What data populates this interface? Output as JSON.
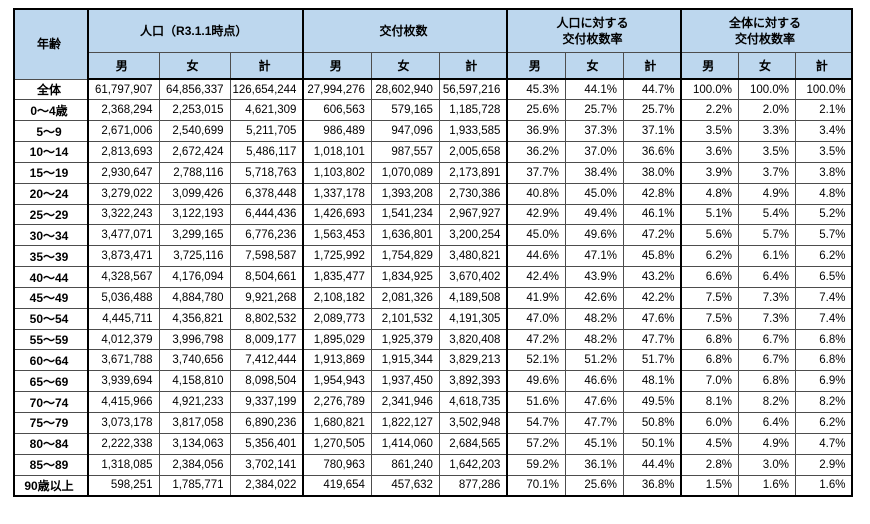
{
  "table": {
    "header": {
      "age": "年齢",
      "groups": [
        {
          "line1": "人口（R3.1.1時点）",
          "line2": ""
        },
        {
          "line1": "交付枚数",
          "line2": ""
        },
        {
          "line1": "人口に対する",
          "line2": "交付枚数率"
        },
        {
          "line1": "全体に対する",
          "line2": "交付枚数率"
        }
      ],
      "sub": [
        "男",
        "女",
        "計"
      ]
    },
    "rows": [
      [
        "全体",
        "61,797,907",
        "64,856,337",
        "126,654,244",
        "27,994,276",
        "28,602,940",
        "56,597,216",
        "45.3%",
        "44.1%",
        "44.7%",
        "100.0%",
        "100.0%",
        "100.0%"
      ],
      [
        "0～4歳",
        "2,368,294",
        "2,253,015",
        "4,621,309",
        "606,563",
        "579,165",
        "1,185,728",
        "25.6%",
        "25.7%",
        "25.7%",
        "2.2%",
        "2.0%",
        "2.1%"
      ],
      [
        "5～9",
        "2,671,006",
        "2,540,699",
        "5,211,705",
        "986,489",
        "947,096",
        "1,933,585",
        "36.9%",
        "37.3%",
        "37.1%",
        "3.5%",
        "3.3%",
        "3.4%"
      ],
      [
        "10～14",
        "2,813,693",
        "2,672,424",
        "5,486,117",
        "1,018,101",
        "987,557",
        "2,005,658",
        "36.2%",
        "37.0%",
        "36.6%",
        "3.6%",
        "3.5%",
        "3.5%"
      ],
      [
        "15～19",
        "2,930,647",
        "2,788,116",
        "5,718,763",
        "1,103,802",
        "1,070,089",
        "2,173,891",
        "37.7%",
        "38.4%",
        "38.0%",
        "3.9%",
        "3.7%",
        "3.8%"
      ],
      [
        "20～24",
        "3,279,022",
        "3,099,426",
        "6,378,448",
        "1,337,178",
        "1,393,208",
        "2,730,386",
        "40.8%",
        "45.0%",
        "42.8%",
        "4.8%",
        "4.9%",
        "4.8%"
      ],
      [
        "25～29",
        "3,322,243",
        "3,122,193",
        "6,444,436",
        "1,426,693",
        "1,541,234",
        "2,967,927",
        "42.9%",
        "49.4%",
        "46.1%",
        "5.1%",
        "5.4%",
        "5.2%"
      ],
      [
        "30～34",
        "3,477,071",
        "3,299,165",
        "6,776,236",
        "1,563,453",
        "1,636,801",
        "3,200,254",
        "45.0%",
        "49.6%",
        "47.2%",
        "5.6%",
        "5.7%",
        "5.7%"
      ],
      [
        "35～39",
        "3,873,471",
        "3,725,116",
        "7,598,587",
        "1,725,992",
        "1,754,829",
        "3,480,821",
        "44.6%",
        "47.1%",
        "45.8%",
        "6.2%",
        "6.1%",
        "6.2%"
      ],
      [
        "40～44",
        "4,328,567",
        "4,176,094",
        "8,504,661",
        "1,835,477",
        "1,834,925",
        "3,670,402",
        "42.4%",
        "43.9%",
        "43.2%",
        "6.6%",
        "6.4%",
        "6.5%"
      ],
      [
        "45～49",
        "5,036,488",
        "4,884,780",
        "9,921,268",
        "2,108,182",
        "2,081,326",
        "4,189,508",
        "41.9%",
        "42.6%",
        "42.2%",
        "7.5%",
        "7.3%",
        "7.4%"
      ],
      [
        "50～54",
        "4,445,711",
        "4,356,821",
        "8,802,532",
        "2,089,773",
        "2,101,532",
        "4,191,305",
        "47.0%",
        "48.2%",
        "47.6%",
        "7.5%",
        "7.3%",
        "7.4%"
      ],
      [
        "55～59",
        "4,012,379",
        "3,996,798",
        "8,009,177",
        "1,895,029",
        "1,925,379",
        "3,820,408",
        "47.2%",
        "48.2%",
        "47.7%",
        "6.8%",
        "6.7%",
        "6.8%"
      ],
      [
        "60～64",
        "3,671,788",
        "3,740,656",
        "7,412,444",
        "1,913,869",
        "1,915,344",
        "3,829,213",
        "52.1%",
        "51.2%",
        "51.7%",
        "6.8%",
        "6.7%",
        "6.8%"
      ],
      [
        "65～69",
        "3,939,694",
        "4,158,810",
        "8,098,504",
        "1,954,943",
        "1,937,450",
        "3,892,393",
        "49.6%",
        "46.6%",
        "48.1%",
        "7.0%",
        "6.8%",
        "6.9%"
      ],
      [
        "70～74",
        "4,415,966",
        "4,921,233",
        "9,337,199",
        "2,276,789",
        "2,341,946",
        "4,618,735",
        "51.6%",
        "47.6%",
        "49.5%",
        "8.1%",
        "8.2%",
        "8.2%"
      ],
      [
        "75～79",
        "3,073,178",
        "3,817,058",
        "6,890,236",
        "1,680,821",
        "1,822,127",
        "3,502,948",
        "54.7%",
        "47.7%",
        "50.8%",
        "6.0%",
        "6.4%",
        "6.2%"
      ],
      [
        "80～84",
        "2,222,338",
        "3,134,063",
        "5,356,401",
        "1,270,505",
        "1,414,060",
        "2,684,565",
        "57.2%",
        "45.1%",
        "50.1%",
        "4.5%",
        "4.9%",
        "4.7%"
      ],
      [
        "85～89",
        "1,318,085",
        "2,384,056",
        "3,702,141",
        "780,963",
        "861,240",
        "1,642,203",
        "59.2%",
        "36.1%",
        "44.4%",
        "2.8%",
        "3.0%",
        "2.9%"
      ],
      [
        "90歳以上",
        "598,251",
        "1,785,771",
        "2,384,022",
        "419,654",
        "457,632",
        "877,286",
        "70.1%",
        "25.6%",
        "36.8%",
        "1.5%",
        "1.6%",
        "1.6%"
      ]
    ]
  },
  "colors": {
    "header_bg": "#BDD7EE",
    "border_outer": "#000000",
    "border_inner": "#4d4d4d"
  }
}
